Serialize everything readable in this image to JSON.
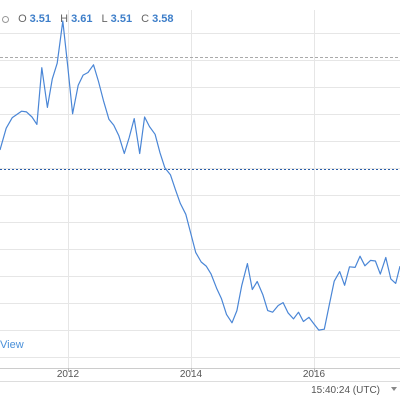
{
  "ohlc": {
    "open_label": "O",
    "open": "3.51",
    "high_label": "H",
    "high": "3.61",
    "low_label": "L",
    "low": "3.51",
    "close_label": "C",
    "close": "3.58"
  },
  "link_text": "View",
  "status": {
    "time": "15:40:24 (UTC)"
  },
  "colors": {
    "line": "#4a86d6",
    "grid": "#e6e6e6",
    "dashed_upper": "#aaaaaa",
    "dashed_blue": "#2b5ea8",
    "value_text": "#3d7ec9"
  },
  "chart_data": {
    "type": "line",
    "x_axis": {
      "tick_labels": [
        "2012",
        "2014",
        "2016"
      ],
      "tick_values": [
        2012,
        2014,
        2016
      ],
      "range": [
        2010.9,
        2017.4
      ]
    },
    "y_range": [
      0,
      100
    ],
    "grid": true,
    "reference_lines": [
      {
        "style": "dashed-gray",
        "y": 88.6
      },
      {
        "style": "dotted-blue",
        "y": 53.8
      }
    ],
    "series": [
      {
        "x": [
          2010.9,
          2011.0,
          2011.1,
          2011.25,
          2011.33,
          2011.42,
          2011.5,
          2011.58,
          2011.67,
          2011.75,
          2011.83,
          2011.92,
          2012.0,
          2012.08,
          2012.17,
          2012.25,
          2012.33,
          2012.42,
          2012.5,
          2012.58,
          2012.67,
          2012.75,
          2012.83,
          2012.92,
          2013.0,
          2013.08,
          2013.17,
          2013.25,
          2013.33,
          2013.42,
          2013.5,
          2013.58,
          2013.67,
          2013.75,
          2013.83,
          2013.92,
          2014.0,
          2014.08,
          2014.17,
          2014.25,
          2014.33,
          2014.42,
          2014.5,
          2014.58,
          2014.67,
          2014.75,
          2014.83,
          2014.92,
          2015.0,
          2015.08,
          2015.17,
          2015.25,
          2015.33,
          2015.42,
          2015.5,
          2015.58,
          2015.67,
          2015.75,
          2015.83,
          2015.92,
          2016.0,
          2016.08,
          2016.17,
          2016.25,
          2016.33,
          2016.42,
          2016.5,
          2016.58,
          2016.67,
          2016.75,
          2016.83,
          2016.92,
          2017.0,
          2017.08,
          2017.17,
          2017.25,
          2017.33,
          2017.4
        ],
        "y": [
          59.7,
          66.5,
          69.8,
          71.8,
          71.6,
          70.0,
          67.7,
          85.4,
          73.0,
          81.9,
          86.8,
          100.0,
          86.0,
          71.0,
          79.9,
          83.1,
          83.9,
          86.3,
          81.1,
          75.2,
          69.3,
          67.4,
          64.2,
          58.6,
          63.6,
          69.5,
          58.6,
          70.0,
          67.0,
          64.6,
          58.8,
          54.1,
          51.9,
          47.3,
          43.0,
          39.6,
          33.6,
          27.7,
          24.7,
          23.4,
          20.9,
          16.5,
          13.2,
          8.3,
          5.7,
          9.5,
          17.4,
          24.2,
          16.1,
          18.6,
          14.5,
          9.5,
          9.0,
          11.1,
          12.0,
          8.8,
          6.9,
          9.0,
          6.1,
          7.4,
          5.4,
          3.4,
          3.7,
          11.2,
          18.7,
          21.7,
          17.4,
          23.2,
          23.0,
          26.5,
          23.5,
          25.2,
          25.0,
          20.9,
          26.1,
          19.4,
          18.0,
          23.4
        ]
      }
    ]
  }
}
